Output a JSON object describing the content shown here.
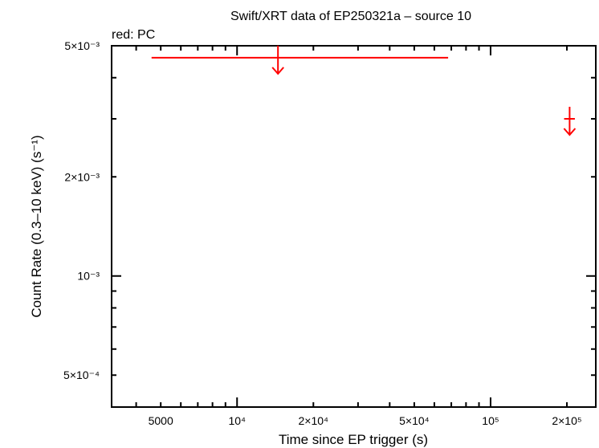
{
  "chart_data": {
    "type": "scatter",
    "title": "Swift/XRT data of EP250321a – source 10",
    "xlabel": "Time since EP trigger (s)",
    "ylabel": "Count Rate (0.3–10 keV) (s⁻¹)",
    "xscale": "log",
    "yscale": "log",
    "xlim": [
      3200,
      260000
    ],
    "ylim": [
      0.0004,
      0.005
    ],
    "grid": false,
    "legend_position": "top-left",
    "x_ticks": [
      {
        "value": 5000,
        "label": "5000"
      },
      {
        "value": 10000,
        "label": "10⁴"
      },
      {
        "value": 20000,
        "label": "2×10⁴"
      },
      {
        "value": 50000,
        "label": "5×10⁴"
      },
      {
        "value": 100000,
        "label": "10⁵"
      },
      {
        "value": 200000,
        "label": "2×10⁵"
      }
    ],
    "y_ticks": [
      {
        "value": 0.0005,
        "label": "5×10⁻⁴"
      },
      {
        "value": 0.001,
        "label": "10⁻³"
      },
      {
        "value": 0.002,
        "label": "2×10⁻³"
      },
      {
        "value": 0.005,
        "label": "5×10⁻³"
      }
    ],
    "series": [
      {
        "name": "PC",
        "color": "#ff0000",
        "legend_label": "red: PC",
        "upper_limits": [
          {
            "x": 14500,
            "x_low": 4600,
            "x_high": 68000,
            "y": 0.0046
          },
          {
            "x": 205000,
            "x_low": 195000,
            "x_high": 215000,
            "y": 0.003
          }
        ]
      }
    ]
  }
}
